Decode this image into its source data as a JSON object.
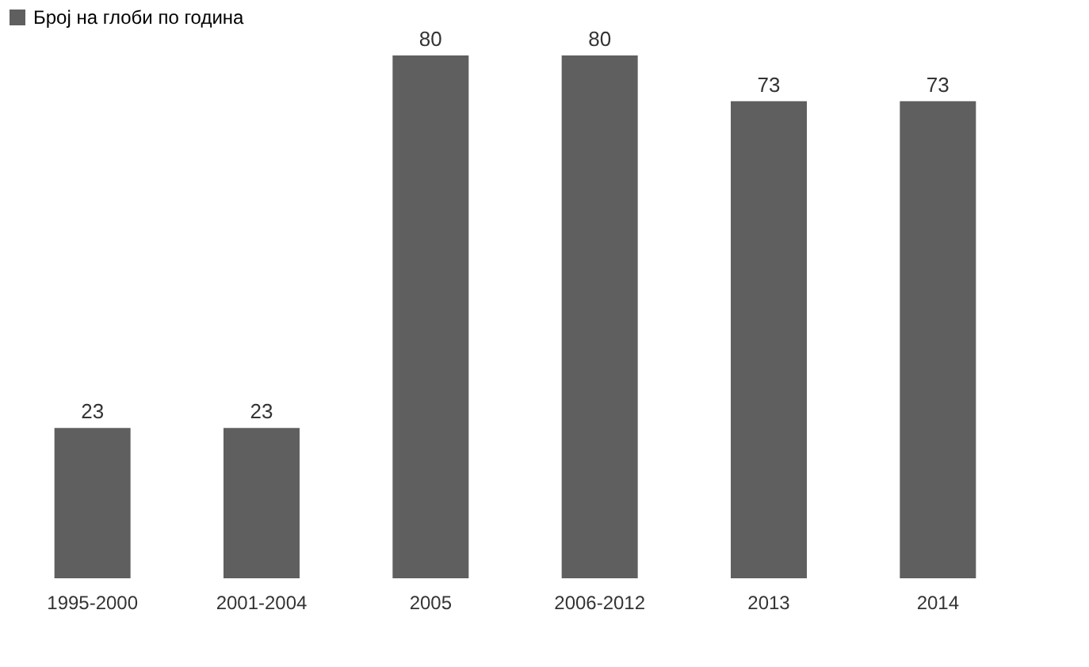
{
  "chart_data": {
    "type": "bar",
    "categories": [
      "1995-2000",
      "2001-2004",
      "2005",
      "2006-2012",
      "2013",
      "2014"
    ],
    "series": [
      {
        "name": "Број на глоби по година",
        "color": "#5f5f5f",
        "values": [
          23,
          23,
          80,
          80,
          73,
          73
        ]
      }
    ],
    "data_labels": true,
    "legend": "top",
    "grid": false,
    "tick_labels": "x"
  }
}
